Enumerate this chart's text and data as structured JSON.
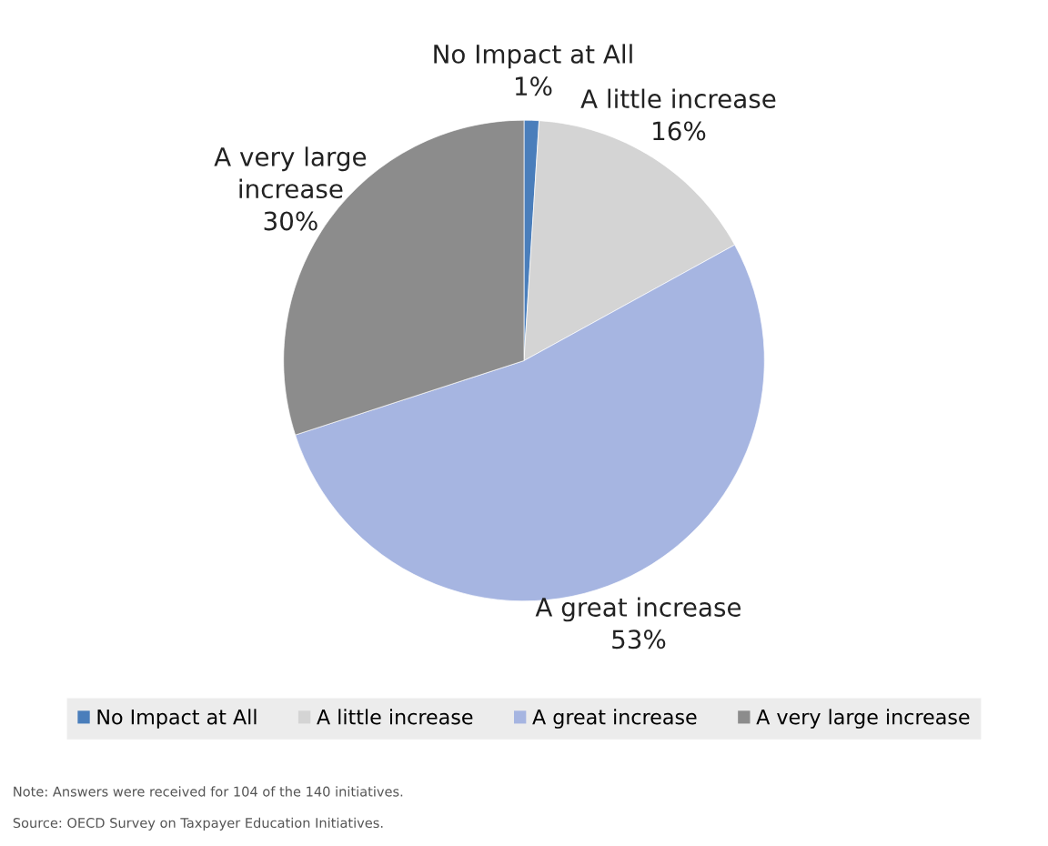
{
  "chart_data": {
    "type": "pie",
    "categories": [
      "No Impact at All",
      "A little increase",
      "A great increase",
      "A very large increase"
    ],
    "values": [
      1,
      16,
      53,
      30
    ],
    "value_labels": [
      "1%",
      "16%",
      "53%",
      "30%"
    ],
    "colors": [
      "#4a7ebb",
      "#d4d4d4",
      "#a6b5e1",
      "#8c8c8c"
    ],
    "legend": "bottom",
    "annotations": [
      "Note: Answers were received for 104 of the 140 initiatives.",
      "Source: OECD Survey on Taxpayer Education Initiatives."
    ]
  }
}
